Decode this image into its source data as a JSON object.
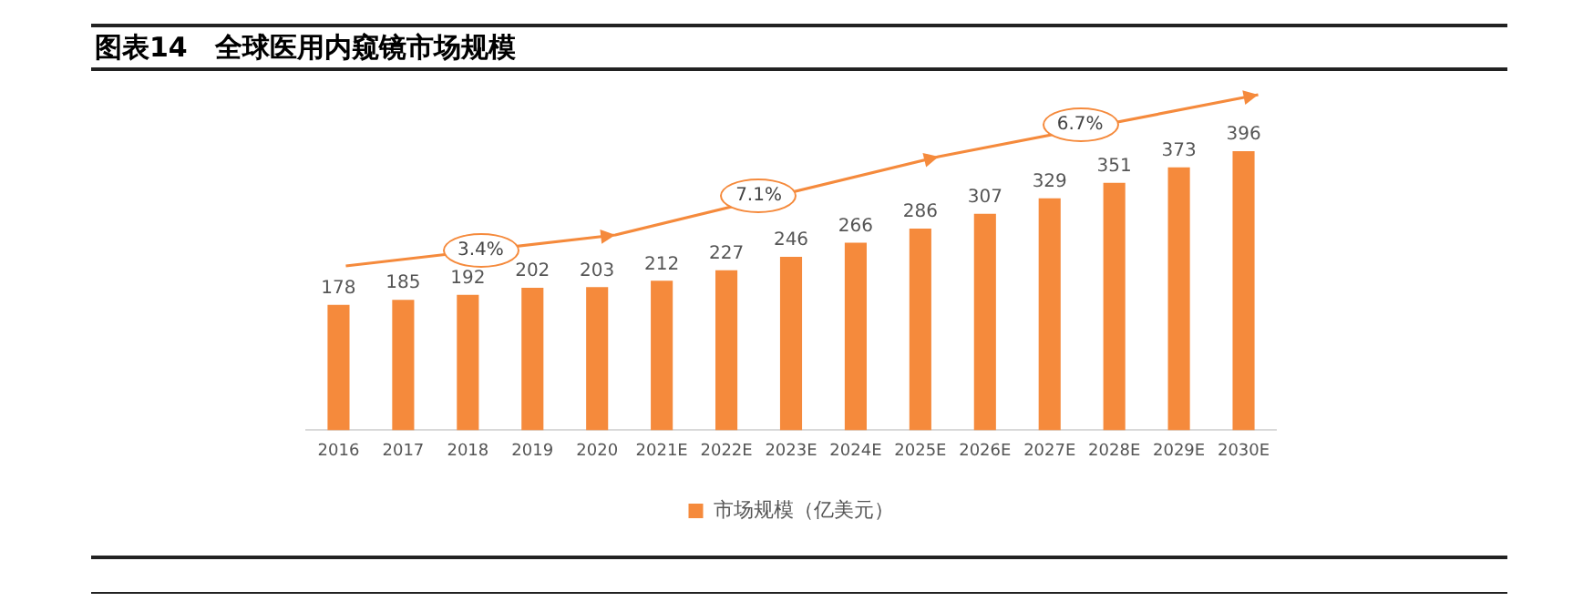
{
  "chart_data": {
    "type": "bar",
    "title": "图表14　全球医用内窥镜市场规模",
    "categories": [
      "2016",
      "2017",
      "2018",
      "2019",
      "2020",
      "2021E",
      "2022E",
      "2023E",
      "2024E",
      "2025E",
      "2026E",
      "2027E",
      "2028E",
      "2029E",
      "2030E"
    ],
    "series": [
      {
        "name": "市场规模（亿美元）",
        "color": "#f58a3c",
        "values": [
          178,
          185,
          192,
          202,
          203,
          212,
          227,
          246,
          266,
          286,
          307,
          329,
          351,
          373,
          396
        ]
      }
    ],
    "annotations": [
      "3.4%",
      "7.1%",
      "6.7%"
    ],
    "data_labels": true,
    "grid": false,
    "legend": "bottom",
    "tick_labels": "x"
  }
}
